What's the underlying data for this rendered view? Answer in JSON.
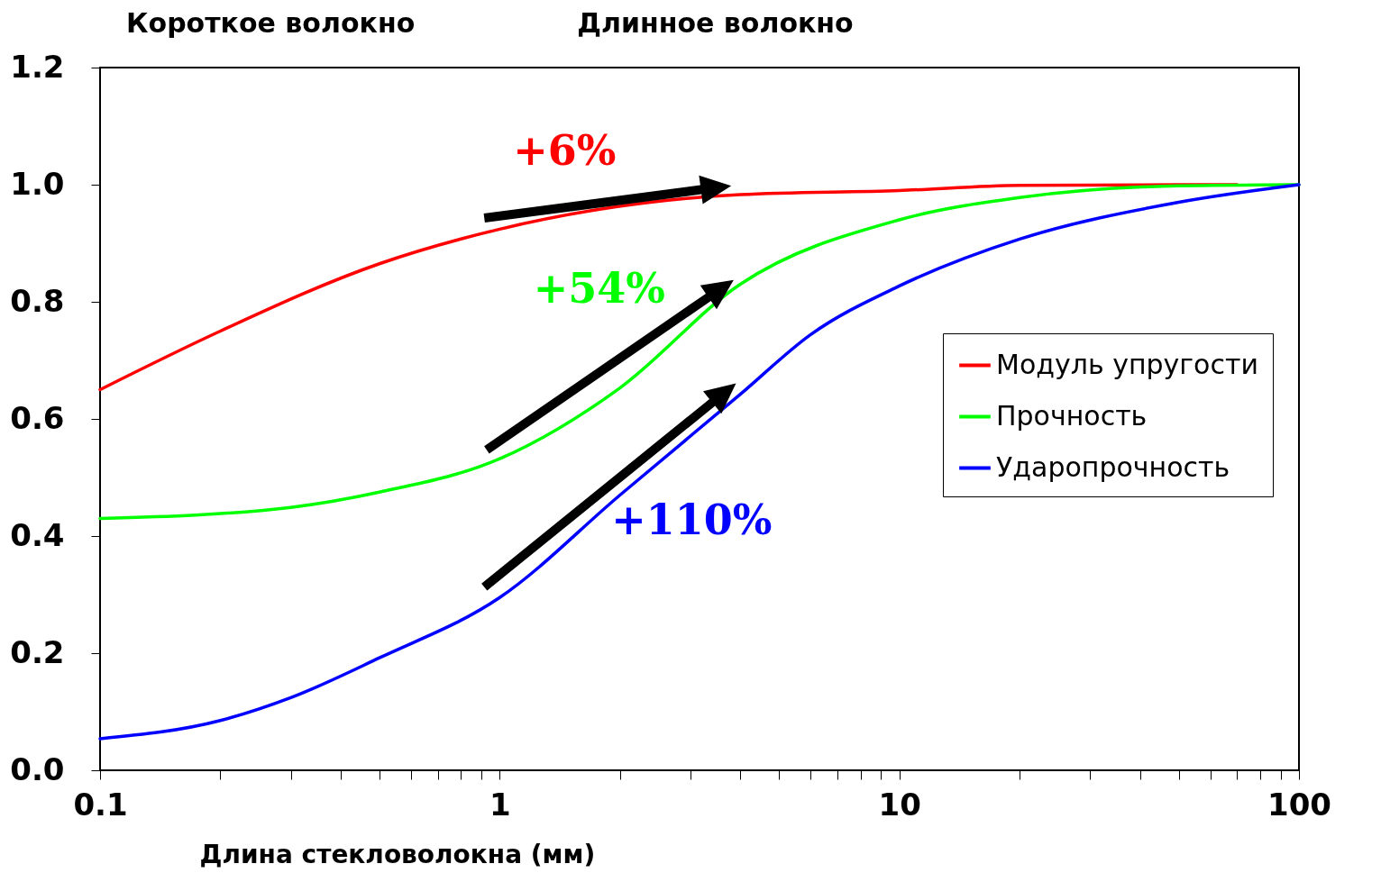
{
  "chart_data": {
    "type": "line",
    "xlabel": "Длина   стекловолокна (мм)",
    "log": "x",
    "grid": false,
    "marker": "none",
    "line_style": "solid",
    "legend": "right",
    "xlim": [
      0.1,
      100
    ],
    "ylim": [
      0,
      1.2
    ],
    "xticks": [
      0.1,
      {
        "value": 0.2,
        "label": null
      },
      {
        "value": 0.3,
        "label": null
      },
      {
        "value": 0.4,
        "label": null
      },
      {
        "value": 0.5,
        "label": null
      },
      {
        "value": 0.6,
        "label": null
      },
      {
        "value": 0.7,
        "label": null
      },
      {
        "value": 0.8,
        "label": null
      },
      {
        "value": 0.9,
        "label": null
      },
      1,
      {
        "value": 2,
        "label": null
      },
      {
        "value": 3,
        "label": null
      },
      {
        "value": 4,
        "label": null
      },
      {
        "value": 5,
        "label": null
      },
      {
        "value": 6,
        "label": null
      },
      {
        "value": 7,
        "label": null
      },
      {
        "value": 8,
        "label": null
      },
      {
        "value": 9,
        "label": null
      },
      10,
      {
        "value": 20,
        "label": null
      },
      {
        "value": 30,
        "label": null
      },
      {
        "value": 40,
        "label": null
      },
      {
        "value": 50,
        "label": null
      },
      {
        "value": 60,
        "label": null
      },
      {
        "value": 70,
        "label": null
      },
      {
        "value": 80,
        "label": null
      },
      {
        "value": 90,
        "label": null
      },
      100
    ],
    "yticks": [
      {
        "value": 0,
        "label": "0.0"
      },
      0.2,
      0.4,
      0.6,
      0.8,
      {
        "value": 1,
        "label": "1.0"
      },
      1.2
    ],
    "series": [
      {
        "name": "Модуль упругости",
        "color": "#ff0000",
        "x": [
          0.1,
          0.2,
          0.5,
          1,
          4,
          10,
          20,
          50,
          70
        ],
        "values": [
          0.65,
          0.75,
          0.865,
          0.924,
          0.983,
          0.99,
          0.999,
          1.0,
          1.0
        ]
      },
      {
        "name": "Прочность",
        "color": "#00ff00",
        "x": [
          0.1,
          0.3,
          0.5,
          1,
          2,
          4,
          10,
          20,
          50,
          100
        ],
        "values": [
          0.43,
          0.449,
          0.475,
          0.532,
          0.653,
          0.83,
          0.94,
          0.978,
          0.998,
          1.0
        ]
      },
      {
        "name": "Ударопрочность",
        "color": "#0000ff",
        "x": [
          0.1,
          0.2,
          0.3,
          0.5,
          1,
          2,
          4,
          6,
          10,
          20,
          50,
          100
        ],
        "values": [
          0.054,
          0.085,
          0.124,
          0.192,
          0.295,
          0.47,
          0.642,
          0.744,
          0.827,
          0.907,
          0.97,
          1.0
        ]
      }
    ],
    "annotations": [
      "Короткое волокно",
      "Длинное волокно",
      "+6%",
      "+54%",
      "+110%"
    ]
  }
}
